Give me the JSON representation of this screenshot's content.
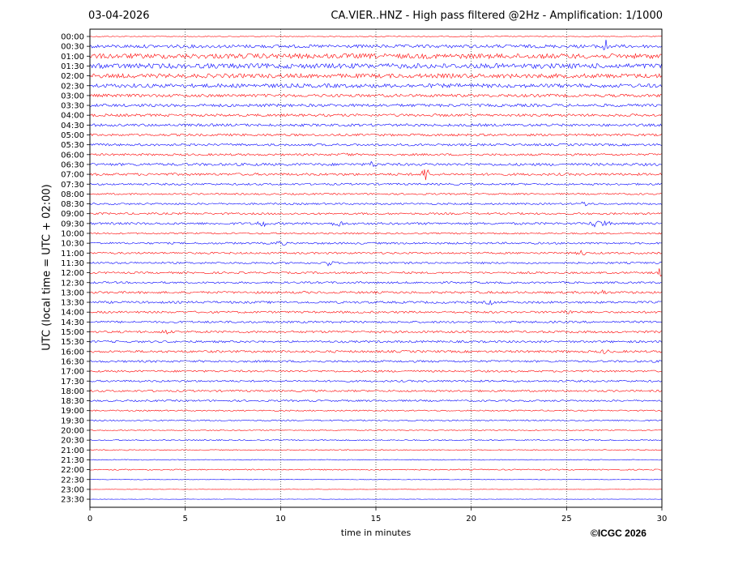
{
  "header": {
    "date": "03-04-2026",
    "title": "CA.VIER..HNZ - High pass filtered @2Hz - Amplification: 1/1000"
  },
  "footer": {
    "copyright": "©ICGC 2026"
  },
  "colors": {
    "even_row": "#0000ff",
    "odd_row": "#ff0000",
    "grid": "#000000"
  },
  "chart_data": {
    "type": "line",
    "title": "CA.VIER..HNZ - High pass filtered @2Hz - Amplification: 1/1000",
    "xlabel": "time in minutes",
    "ylabel": "UTC (local time = UTC + 02:00)",
    "xlim": [
      0,
      30
    ],
    "x_ticks": [
      0,
      5,
      10,
      15,
      20,
      25,
      30
    ],
    "grid": "vertical dotted",
    "row_labels": [
      "00:00",
      "00:30",
      "01:00",
      "01:30",
      "02:00",
      "02:30",
      "03:00",
      "03:30",
      "04:00",
      "04:30",
      "05:00",
      "05:30",
      "06:00",
      "06:30",
      "07:00",
      "07:30",
      "08:00",
      "08:30",
      "09:00",
      "09:30",
      "10:00",
      "10:30",
      "11:00",
      "11:30",
      "12:00",
      "12:30",
      "13:00",
      "13:30",
      "14:00",
      "14:30",
      "15:00",
      "15:30",
      "16:00",
      "16:30",
      "17:00",
      "17:30",
      "18:00",
      "18:30",
      "19:00",
      "19:30",
      "20:00",
      "20:30",
      "21:00",
      "21:30",
      "22:00",
      "22:30",
      "23:00",
      "23:30"
    ],
    "row_colors": [
      "red",
      "blue",
      "red",
      "blue",
      "red",
      "blue",
      "red",
      "blue",
      "red",
      "blue",
      "red",
      "blue",
      "red",
      "blue",
      "red",
      "blue",
      "red",
      "blue",
      "red",
      "blue",
      "red",
      "blue",
      "red",
      "blue",
      "red",
      "blue",
      "red",
      "blue",
      "red",
      "blue",
      "red",
      "blue",
      "red",
      "blue",
      "red",
      "blue",
      "red",
      "blue",
      "red",
      "blue",
      "red",
      "blue",
      "red",
      "blue",
      "red",
      "blue",
      "red",
      "blue"
    ],
    "noise_level": [
      0.5,
      2.0,
      3.0,
      3.0,
      2.6,
      2.4,
      1.8,
      1.8,
      1.6,
      1.6,
      1.4,
      1.4,
      1.3,
      1.6,
      1.5,
      1.2,
      1.0,
      1.1,
      1.2,
      1.4,
      1.0,
      1.2,
      1.2,
      1.2,
      1.2,
      1.2,
      1.4,
      1.4,
      1.3,
      1.3,
      1.4,
      1.3,
      1.4,
      1.3,
      1.2,
      1.2,
      1.2,
      1.1,
      0.8,
      0.8,
      0.6,
      0.7,
      0.6,
      0.5,
      0.7,
      0.3,
      0.2,
      0.2
    ],
    "events": [
      {
        "row": 1,
        "minute": 27.0,
        "amplitude": 9
      },
      {
        "row": 14,
        "minute": 17.6,
        "amplitude": 8
      },
      {
        "row": 19,
        "minute": 9.0,
        "amplitude": 4
      },
      {
        "row": 19,
        "minute": 13.0,
        "amplitude": 4
      },
      {
        "row": 19,
        "minute": 26.5,
        "amplitude": 4
      },
      {
        "row": 19,
        "minute": 27.0,
        "amplitude": 4
      },
      {
        "row": 21,
        "minute": 10.0,
        "amplitude": 3
      },
      {
        "row": 23,
        "minute": 12.5,
        "amplitude": 3
      },
      {
        "row": 24,
        "minute": 29.9,
        "amplitude": 5
      },
      {
        "row": 26,
        "minute": 26.8,
        "amplitude": 4
      },
      {
        "row": 13,
        "minute": 14.8,
        "amplitude": 3
      },
      {
        "row": 22,
        "minute": 25.8,
        "amplitude": 3
      },
      {
        "row": 28,
        "minute": 25.0,
        "amplitude": 3
      },
      {
        "row": 27,
        "minute": 21.0,
        "amplitude": 2
      },
      {
        "row": 17,
        "minute": 26.0,
        "amplitude": 3
      },
      {
        "row": 12,
        "minute": 13.5,
        "amplitude": 2
      },
      {
        "row": 32,
        "minute": 27.0,
        "amplitude": 2
      },
      {
        "row": 30,
        "minute": 4.0,
        "amplitude": 2
      }
    ]
  }
}
